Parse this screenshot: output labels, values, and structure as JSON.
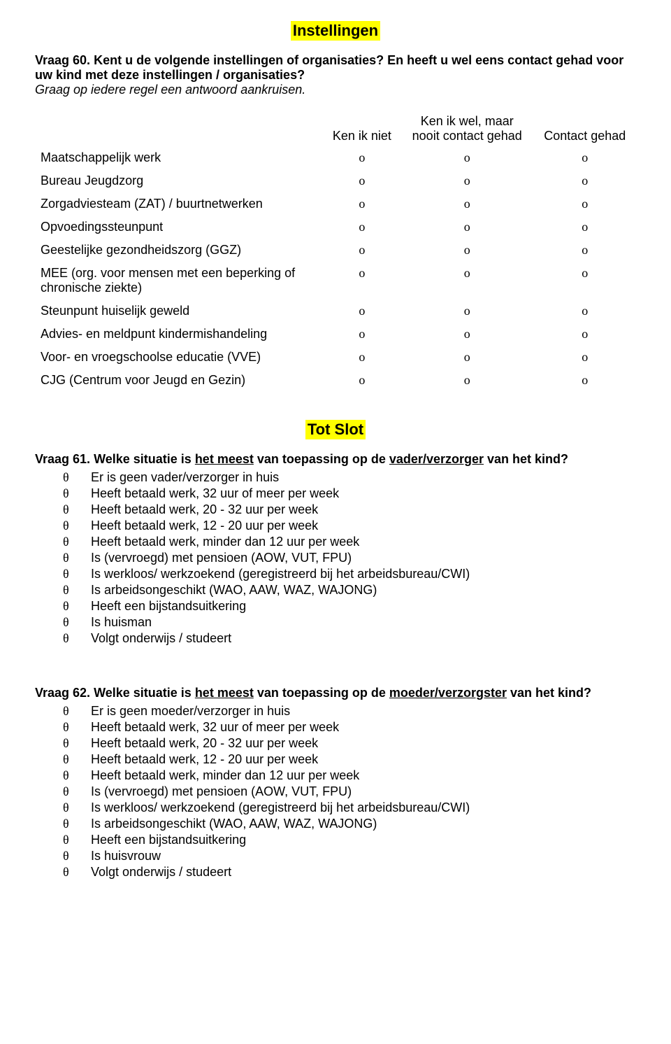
{
  "section1": {
    "title": "Instellingen",
    "q60": {
      "number": "Vraag 60.",
      "text": "Kent u de volgende instellingen of organisaties? En heeft u wel eens contact gehad voor uw kind met deze instellingen / organisaties?",
      "note": "Graag op iedere regel een antwoord aankruisen."
    },
    "table": {
      "col1": "Ken ik niet",
      "col2a": "Ken ik wel, maar",
      "col2b": "nooit contact gehad",
      "col3": "Contact gehad",
      "mark": "ο",
      "rows": [
        "Maatschappelijk werk",
        "Bureau Jeugdzorg",
        "Zorgadviesteam (ZAT) / buurtnetwerken",
        "Opvoedingssteunpunt",
        "Geestelijke gezondheidszorg (GGZ)",
        "MEE (org. voor mensen met een beperking of chronische ziekte)",
        "Steunpunt huiselijk geweld",
        "Advies- en meldpunt kindermishandeling",
        "Voor- en vroegschoolse educatie (VVE)",
        "CJG (Centrum voor Jeugd en Gezin)"
      ]
    }
  },
  "section2": {
    "title": "Tot Slot",
    "q61": {
      "number": "Vraag 61.",
      "pre": "Welke situatie is ",
      "u1": "het meest",
      "mid": " van toepassing op de ",
      "u2": "vader/verzorger",
      "post": " van het kind?",
      "bullet": "θ",
      "options": [
        "Er is geen vader/verzorger in huis",
        "Heeft betaald werk, 32 uur of meer per week",
        "Heeft betaald werk, 20 - 32 uur per week",
        "Heeft betaald werk, 12 - 20 uur per week",
        "Heeft betaald werk, minder dan 12 uur per week",
        "Is (vervroegd) met pensioen (AOW, VUT, FPU)",
        "Is werkloos/ werkzoekend (geregistreerd bij het arbeidsbureau/CWI)",
        "Is arbeidsongeschikt (WAO, AAW, WAZ, WAJONG)",
        "Heeft een bijstandsuitkering",
        "Is huisman",
        "Volgt onderwijs / studeert"
      ]
    },
    "q62": {
      "number": "Vraag 62.",
      "pre": "Welke situatie is ",
      "u1": "het meest",
      "mid": " van toepassing op de ",
      "u2": "moeder/verzorgster",
      "post": " van het kind?",
      "bullet": "θ",
      "options": [
        "Er is geen moeder/verzorger in huis",
        "Heeft betaald werk, 32 uur of meer per week",
        "Heeft betaald werk, 20 - 32 uur per week",
        "Heeft betaald werk, 12 - 20 uur per week",
        "Heeft betaald werk, minder dan 12 uur per week",
        "Is (vervroegd) met pensioen (AOW, VUT, FPU)",
        "Is werkloos/ werkzoekend (geregistreerd bij het arbeidsbureau/CWI)",
        "Is arbeidsongeschikt (WAO, AAW, WAZ, WAJONG)",
        "Heeft een bijstandsuitkering",
        "Is huisvrouw",
        "Volgt onderwijs / studeert"
      ]
    }
  }
}
